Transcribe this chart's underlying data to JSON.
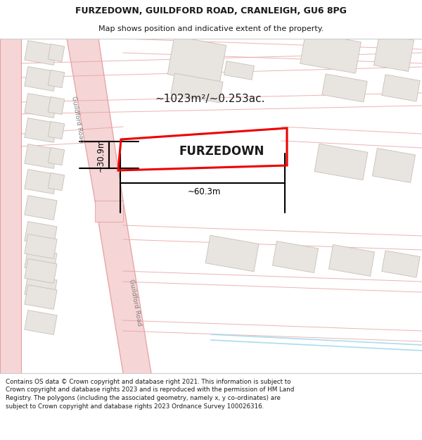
{
  "title_line1": "FURZEDOWN, GUILDFORD ROAD, CRANLEIGH, GU6 8PG",
  "title_line2": "Map shows position and indicative extent of the property.",
  "property_name": "FURZEDOWN",
  "area_text": "~1023m²/~0.253ac.",
  "width_text": "~60.3m",
  "height_text": "~30.9m",
  "footer_text": "Contains OS data © Crown copyright and database right 2021. This information is subject to Crown copyright and database rights 2023 and is reproduced with the permission of HM Land Registry. The polygons (including the associated geometry, namely x, y co-ordinates) are subject to Crown copyright and database rights 2023 Ordnance Survey 100026316.",
  "road_color": "#f5d5d5",
  "road_line_color": "#e8a0a0",
  "building_fill": "#e8e4e0",
  "building_outline": "#c8c0b8",
  "highlight_color": "#ee0000",
  "text_color": "#1a1a1a",
  "dim_line_color": "#000000",
  "map_bg": "#ffffff",
  "title_bg": "#ffffff",
  "footer_bg": "#ffffff",
  "blue_line_color": "#aaddee",
  "road_label_color": "#808080"
}
